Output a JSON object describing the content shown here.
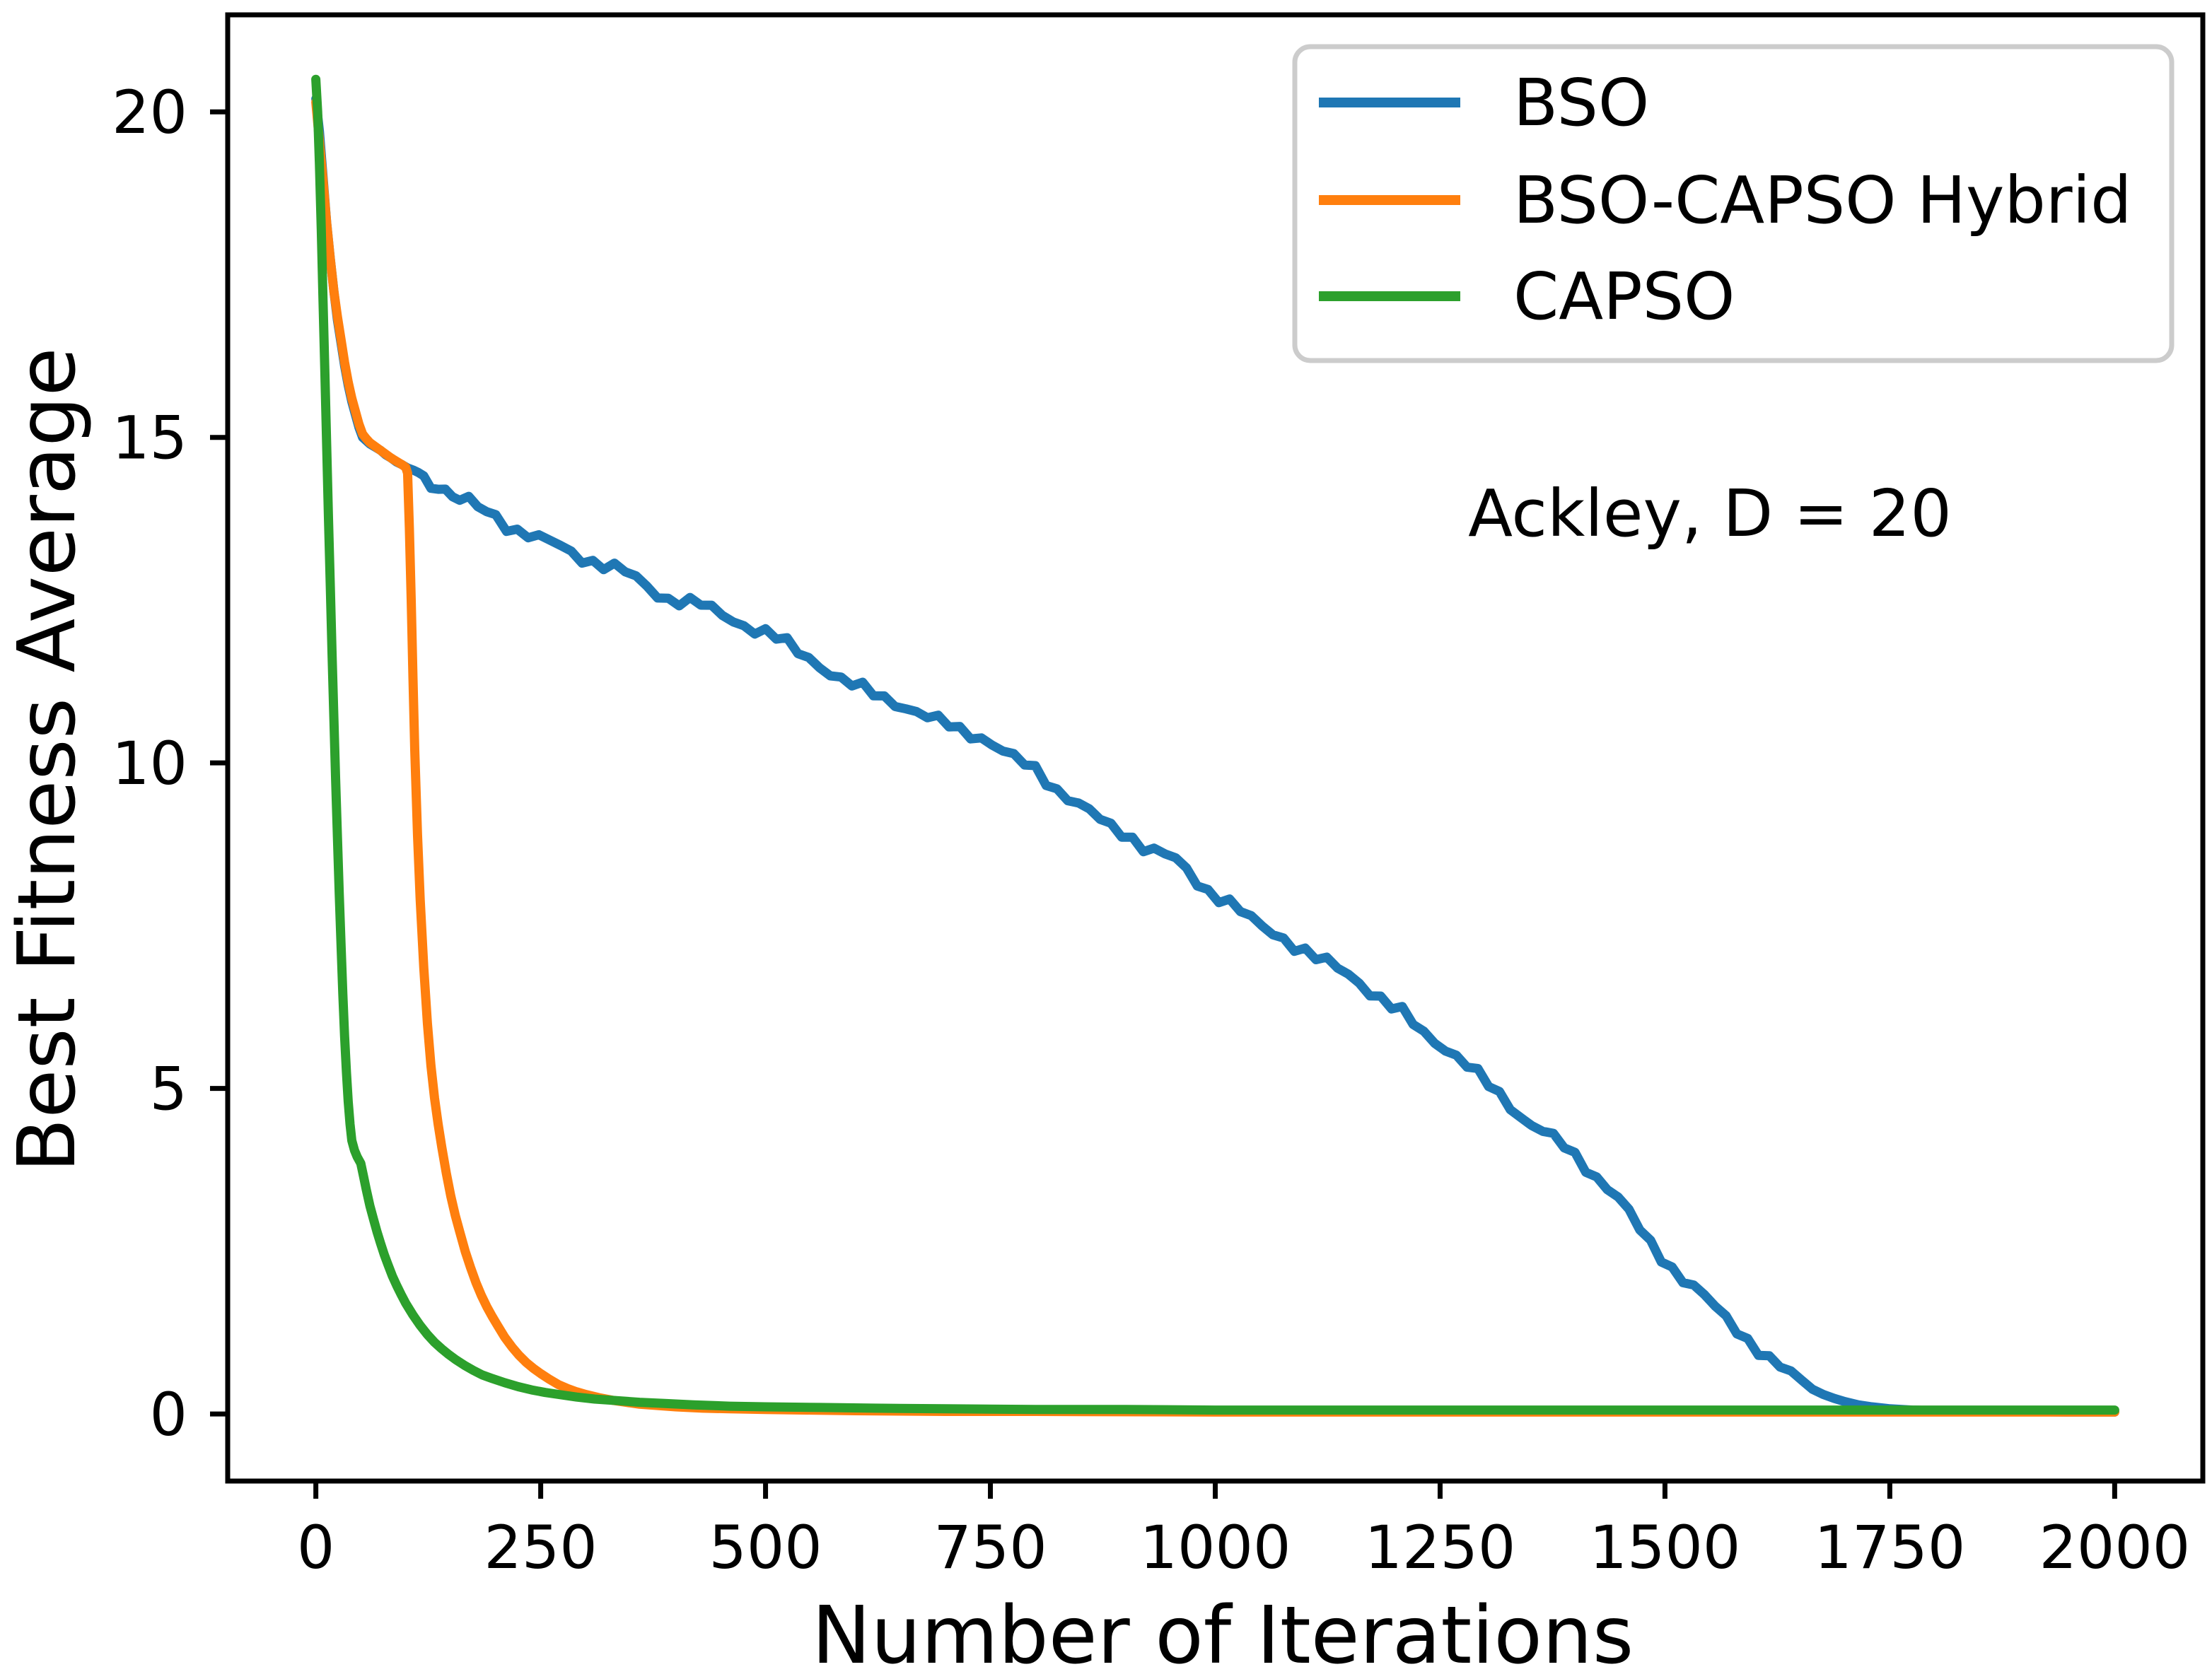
{
  "figure": {
    "background": "#ffffff",
    "border_color": "#000000",
    "legend_border_color": "#cccccc"
  },
  "chart_data": {
    "type": "line",
    "title": "",
    "xlabel": "Number of Iterations",
    "ylabel": "Best Fitness Average",
    "annotation": "Ackley, D = 20",
    "xlim": [
      -98,
      2098
    ],
    "ylim": [
      -1.03,
      21.49
    ],
    "x_ticks": [
      0,
      250,
      500,
      750,
      1000,
      1250,
      1500,
      1750,
      2000
    ],
    "y_ticks": [
      0,
      5,
      10,
      15,
      20
    ],
    "grid": false,
    "legend_position": "upper right",
    "series": [
      {
        "name": "BSO",
        "color": "#1f77b4",
        "points": [
          [
            0,
            20.2
          ],
          [
            4,
            19.7
          ],
          [
            8,
            19.0
          ],
          [
            12,
            18.3
          ],
          [
            16,
            17.75
          ],
          [
            20,
            17.25
          ],
          [
            24,
            16.8
          ],
          [
            28,
            16.45
          ],
          [
            32,
            16.1
          ],
          [
            36,
            15.8
          ],
          [
            40,
            15.55
          ],
          [
            44,
            15.35
          ],
          [
            48,
            15.15
          ],
          [
            52,
            15.0
          ],
          [
            56,
            14.95
          ],
          [
            60,
            14.9
          ],
          [
            66,
            14.85
          ],
          [
            72,
            14.8
          ],
          [
            78,
            14.73
          ],
          [
            84,
            14.68
          ],
          [
            90,
            14.62
          ],
          [
            96,
            14.58
          ],
          [
            102,
            14.53
          ],
          [
            108,
            14.5
          ],
          [
            114,
            14.46
          ],
          [
            120,
            14.4
          ],
          [
            128,
            14.32
          ],
          [
            136,
            14.26
          ],
          [
            144,
            14.18
          ],
          [
            152,
            14.12
          ],
          [
            160,
            14.06
          ],
          [
            170,
            13.99
          ],
          [
            180,
            13.92
          ],
          [
            190,
            13.85
          ],
          [
            200,
            13.77
          ],
          [
            212,
            13.66
          ],
          [
            224,
            13.58
          ],
          [
            236,
            13.52
          ],
          [
            248,
            13.45
          ],
          [
            260,
            13.38
          ],
          [
            272,
            13.32
          ],
          [
            284,
            13.22
          ],
          [
            296,
            13.16
          ],
          [
            308,
            13.1
          ],
          [
            320,
            13.05
          ],
          [
            332,
            13.0
          ],
          [
            344,
            12.92
          ],
          [
            356,
            12.82
          ],
          [
            368,
            12.7
          ],
          [
            380,
            12.6
          ],
          [
            392,
            12.53
          ],
          [
            404,
            12.5
          ],
          [
            416,
            12.47
          ],
          [
            428,
            12.43
          ],
          [
            440,
            12.34
          ],
          [
            452,
            12.27
          ],
          [
            464,
            12.2
          ],
          [
            476,
            12.13
          ],
          [
            488,
            12.06
          ],
          [
            500,
            12.0
          ],
          [
            512,
            11.92
          ],
          [
            524,
            11.82
          ],
          [
            536,
            11.7
          ],
          [
            548,
            11.62
          ],
          [
            560,
            11.51
          ],
          [
            572,
            11.4
          ],
          [
            584,
            11.28
          ],
          [
            596,
            11.2
          ],
          [
            608,
            11.13
          ],
          [
            620,
            11.06
          ],
          [
            632,
            11.0
          ],
          [
            644,
            10.94
          ],
          [
            656,
            10.87
          ],
          [
            668,
            10.78
          ],
          [
            680,
            10.7
          ],
          [
            692,
            10.63
          ],
          [
            704,
            10.58
          ],
          [
            716,
            10.51
          ],
          [
            728,
            10.46
          ],
          [
            740,
            10.4
          ],
          [
            752,
            10.3
          ],
          [
            764,
            10.17
          ],
          [
            776,
            10.06
          ],
          [
            788,
            9.98
          ],
          [
            800,
            9.9
          ],
          [
            812,
            9.75
          ],
          [
            824,
            9.6
          ],
          [
            836,
            9.48
          ],
          [
            848,
            9.35
          ],
          [
            860,
            9.24
          ],
          [
            872,
            9.12
          ],
          [
            884,
            9.02
          ],
          [
            896,
            8.95
          ],
          [
            908,
            8.85
          ],
          [
            920,
            8.72
          ],
          [
            932,
            8.64
          ],
          [
            944,
            8.58
          ],
          [
            956,
            8.5
          ],
          [
            968,
            8.35
          ],
          [
            980,
            8.18
          ],
          [
            992,
            8.05
          ],
          [
            1004,
            7.95
          ],
          [
            1016,
            7.85
          ],
          [
            1028,
            7.72
          ],
          [
            1040,
            7.58
          ],
          [
            1052,
            7.48
          ],
          [
            1064,
            7.4
          ],
          [
            1076,
            7.32
          ],
          [
            1088,
            7.2
          ],
          [
            1100,
            7.1
          ],
          [
            1112,
            7.0
          ],
          [
            1124,
            6.92
          ],
          [
            1136,
            6.85
          ],
          [
            1148,
            6.76
          ],
          [
            1160,
            6.65
          ],
          [
            1172,
            6.5
          ],
          [
            1184,
            6.38
          ],
          [
            1196,
            6.25
          ],
          [
            1208,
            6.15
          ],
          [
            1220,
            6.0
          ],
          [
            1232,
            5.85
          ],
          [
            1244,
            5.75
          ],
          [
            1256,
            5.63
          ],
          [
            1268,
            5.5
          ],
          [
            1280,
            5.35
          ],
          [
            1292,
            5.2
          ],
          [
            1304,
            5.05
          ],
          [
            1316,
            4.9
          ],
          [
            1328,
            4.75
          ],
          [
            1340,
            4.58
          ],
          [
            1352,
            4.45
          ],
          [
            1364,
            4.35
          ],
          [
            1376,
            4.22
          ],
          [
            1388,
            4.1
          ],
          [
            1400,
            3.95
          ],
          [
            1412,
            3.8
          ],
          [
            1424,
            3.65
          ],
          [
            1436,
            3.5
          ],
          [
            1448,
            3.32
          ],
          [
            1460,
            3.08
          ],
          [
            1472,
            2.82
          ],
          [
            1484,
            2.6
          ],
          [
            1496,
            2.42
          ],
          [
            1508,
            2.25
          ],
          [
            1520,
            2.1
          ],
          [
            1532,
            1.95
          ],
          [
            1544,
            1.8
          ],
          [
            1556,
            1.62
          ],
          [
            1568,
            1.45
          ],
          [
            1580,
            1.3
          ],
          [
            1592,
            1.15
          ],
          [
            1604,
            1.0
          ],
          [
            1616,
            0.85
          ],
          [
            1628,
            0.72
          ],
          [
            1640,
            0.6
          ],
          [
            1652,
            0.48
          ],
          [
            1664,
            0.38
          ],
          [
            1676,
            0.3
          ],
          [
            1688,
            0.24
          ],
          [
            1700,
            0.19
          ],
          [
            1715,
            0.14
          ],
          [
            1730,
            0.11
          ],
          [
            1750,
            0.08
          ],
          [
            1775,
            0.06
          ],
          [
            1800,
            0.05
          ],
          [
            1850,
            0.04
          ],
          [
            1900,
            0.04
          ],
          [
            1950,
            0.03
          ],
          [
            2000,
            0.03
          ]
        ]
      },
      {
        "name": "BSO-CAPSO Hybrid",
        "color": "#ff7f0e",
        "points": [
          [
            0,
            20.15
          ],
          [
            4,
            19.55
          ],
          [
            8,
            18.95
          ],
          [
            12,
            18.3
          ],
          [
            16,
            17.75
          ],
          [
            20,
            17.25
          ],
          [
            24,
            16.85
          ],
          [
            28,
            16.5
          ],
          [
            32,
            16.15
          ],
          [
            36,
            15.85
          ],
          [
            40,
            15.6
          ],
          [
            44,
            15.4
          ],
          [
            48,
            15.2
          ],
          [
            52,
            15.05
          ],
          [
            56,
            14.98
          ],
          [
            60,
            14.92
          ],
          [
            66,
            14.86
          ],
          [
            72,
            14.8
          ],
          [
            78,
            14.74
          ],
          [
            84,
            14.68
          ],
          [
            90,
            14.63
          ],
          [
            96,
            14.58
          ],
          [
            100,
            14.54
          ],
          [
            102,
            14.45
          ],
          [
            104,
            13.6
          ],
          [
            106,
            12.5
          ],
          [
            108,
            11.3
          ],
          [
            110,
            10.2
          ],
          [
            113,
            8.9
          ],
          [
            116,
            7.9
          ],
          [
            120,
            6.85
          ],
          [
            124,
            6.0
          ],
          [
            128,
            5.35
          ],
          [
            132,
            4.85
          ],
          [
            136,
            4.45
          ],
          [
            140,
            4.1
          ],
          [
            145,
            3.7
          ],
          [
            150,
            3.35
          ],
          [
            155,
            3.05
          ],
          [
            160,
            2.8
          ],
          [
            166,
            2.5
          ],
          [
            172,
            2.25
          ],
          [
            178,
            2.02
          ],
          [
            184,
            1.82
          ],
          [
            190,
            1.65
          ],
          [
            196,
            1.5
          ],
          [
            202,
            1.36
          ],
          [
            210,
            1.18
          ],
          [
            218,
            1.03
          ],
          [
            226,
            0.9
          ],
          [
            234,
            0.79
          ],
          [
            242,
            0.7
          ],
          [
            250,
            0.62
          ],
          [
            260,
            0.53
          ],
          [
            270,
            0.45
          ],
          [
            280,
            0.39
          ],
          [
            290,
            0.34
          ],
          [
            300,
            0.3
          ],
          [
            315,
            0.25
          ],
          [
            330,
            0.21
          ],
          [
            345,
            0.18
          ],
          [
            360,
            0.15
          ],
          [
            380,
            0.13
          ],
          [
            400,
            0.11
          ],
          [
            430,
            0.09
          ],
          [
            460,
            0.08
          ],
          [
            500,
            0.07
          ],
          [
            550,
            0.06
          ],
          [
            600,
            0.05
          ],
          [
            700,
            0.04
          ],
          [
            800,
            0.04
          ],
          [
            1000,
            0.03
          ],
          [
            1250,
            0.03
          ],
          [
            1500,
            0.03
          ],
          [
            1750,
            0.03
          ],
          [
            2000,
            0.03
          ]
        ]
      },
      {
        "name": "CAPSO",
        "color": "#2ca02c",
        "points": [
          [
            0,
            20.5
          ],
          [
            2,
            20.0
          ],
          [
            4,
            19.2
          ],
          [
            6,
            18.2
          ],
          [
            8,
            17.1
          ],
          [
            10,
            16.0
          ],
          [
            12,
            14.9
          ],
          [
            14,
            13.8
          ],
          [
            16,
            12.75
          ],
          [
            18,
            11.7
          ],
          [
            20,
            10.7
          ],
          [
            22,
            9.75
          ],
          [
            24,
            8.85
          ],
          [
            26,
            8.0
          ],
          [
            28,
            7.2
          ],
          [
            30,
            6.45
          ],
          [
            32,
            5.8
          ],
          [
            34,
            5.25
          ],
          [
            36,
            4.8
          ],
          [
            38,
            4.45
          ],
          [
            40,
            4.2
          ],
          [
            43,
            4.05
          ],
          [
            46,
            3.95
          ],
          [
            50,
            3.85
          ],
          [
            53,
            3.65
          ],
          [
            56,
            3.45
          ],
          [
            60,
            3.2
          ],
          [
            64,
            3.0
          ],
          [
            68,
            2.8
          ],
          [
            72,
            2.62
          ],
          [
            76,
            2.45
          ],
          [
            80,
            2.3
          ],
          [
            85,
            2.12
          ],
          [
            90,
            1.97
          ],
          [
            95,
            1.83
          ],
          [
            100,
            1.7
          ],
          [
            108,
            1.52
          ],
          [
            116,
            1.36
          ],
          [
            124,
            1.22
          ],
          [
            132,
            1.1
          ],
          [
            140,
            1.0
          ],
          [
            148,
            0.91
          ],
          [
            156,
            0.83
          ],
          [
            165,
            0.75
          ],
          [
            175,
            0.67
          ],
          [
            185,
            0.6
          ],
          [
            195,
            0.55
          ],
          [
            210,
            0.48
          ],
          [
            225,
            0.42
          ],
          [
            240,
            0.37
          ],
          [
            255,
            0.33
          ],
          [
            270,
            0.3
          ],
          [
            290,
            0.26
          ],
          [
            310,
            0.23
          ],
          [
            330,
            0.21
          ],
          [
            360,
            0.18
          ],
          [
            390,
            0.16
          ],
          [
            420,
            0.14
          ],
          [
            460,
            0.12
          ],
          [
            500,
            0.11
          ],
          [
            560,
            0.1
          ],
          [
            620,
            0.09
          ],
          [
            700,
            0.08
          ],
          [
            800,
            0.07
          ],
          [
            900,
            0.07
          ],
          [
            1000,
            0.06
          ],
          [
            1200,
            0.06
          ],
          [
            1400,
            0.06
          ],
          [
            1600,
            0.06
          ],
          [
            1800,
            0.06
          ],
          [
            2000,
            0.06
          ]
        ]
      }
    ]
  }
}
